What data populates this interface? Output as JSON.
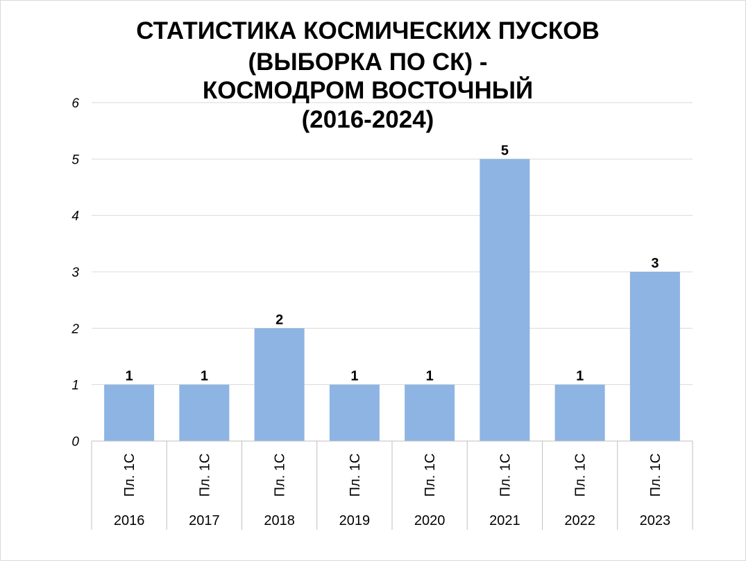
{
  "chart_data": {
    "type": "bar",
    "title_lines": [
      "СТАТИСТИКА КОСМИЧЕСКИХ ПУСКОВ",
      "(ВЫБОРКА ПО СК) -",
      "КОСМОДРОМ ВОСТОЧНЫЙ",
      "(2016-2024)"
    ],
    "categories": [
      "Пл. 1С",
      "Пл. 1С",
      "Пл. 1С",
      "Пл. 1С",
      "Пл. 1С",
      "Пл. 1С",
      "Пл. 1С",
      "Пл. 1С"
    ],
    "groups": [
      "2016",
      "2017",
      "2018",
      "2019",
      "2020",
      "2021",
      "2022",
      "2023"
    ],
    "values": [
      1,
      1,
      2,
      1,
      1,
      5,
      1,
      3
    ],
    "ylim": [
      0,
      6
    ],
    "yticks": [
      "0",
      "1",
      "2",
      "3",
      "4",
      "5",
      "6"
    ],
    "bar_color": "#8db4e2",
    "grid": true,
    "data_labels": true
  }
}
